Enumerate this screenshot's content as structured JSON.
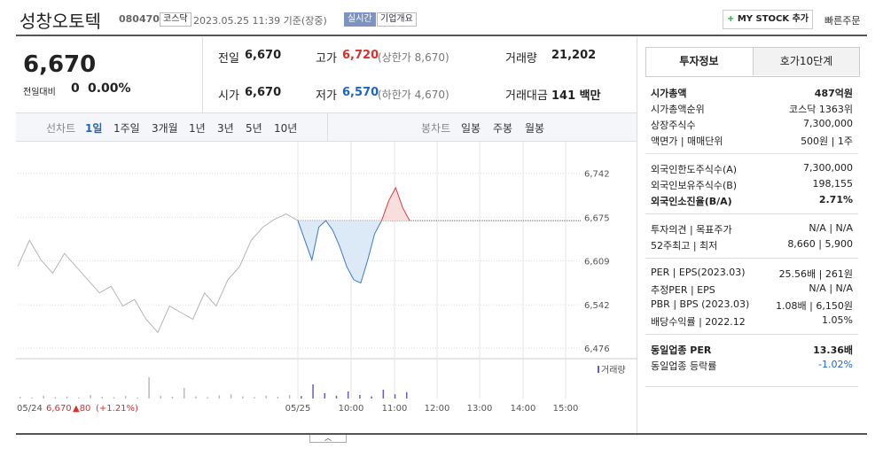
{
  "header": {
    "name": "성창오토텍",
    "code": "080470",
    "market": "코스닥",
    "datetime": "2023.05.25 11:39 기준(장중)",
    "live": "실시간",
    "overview": "기업개요",
    "mystock": "MY STOCK 추가",
    "quick": "빠른주문"
  },
  "quote": {
    "price": "6,670",
    "change_label": "전일대비",
    "change": "0",
    "change_rate": "0.00%",
    "stats": [
      [
        {
          "label": "전일",
          "value": "6,670"
        },
        {
          "label": "고가",
          "value": "6,720",
          "note": "(상한가 8,670)"
        },
        {
          "label": "거래량",
          "value": "21,202"
        }
      ],
      [
        {
          "label": "시가",
          "value": "6,670"
        },
        {
          "label": "저가",
          "value": "6,570",
          "note": "(하한가 4,670)"
        },
        {
          "label": "거래대금",
          "value": "141 백만"
        }
      ]
    ]
  },
  "tabs": {
    "line": [
      "선차트",
      "1일",
      "1주일",
      "3개월",
      "1년",
      "3년",
      "5년",
      "10년"
    ],
    "candle": [
      "봉차트",
      "일봉",
      "주봉",
      "월봉"
    ]
  },
  "chart_data": {
    "type": "line",
    "ylim": [
      6460,
      6790
    ],
    "yticks": [
      {
        "value": 6742,
        "label": "6,742"
      },
      {
        "value": 6675,
        "label": "6,675"
      },
      {
        "value": 6609,
        "label": "6,609"
      },
      {
        "value": 6542,
        "label": "6,542"
      },
      {
        "value": 6476,
        "label": "6,476"
      }
    ],
    "xticks": [
      "05/24",
      "05/25",
      "10:00",
      "11:00",
      "12:00",
      "13:00",
      "14:00",
      "15:00"
    ],
    "reference": 6670,
    "series": [
      {
        "color": "#b5b5b5",
        "values": [
          6600,
          6640,
          6610,
          6590,
          6620,
          6600,
          6580,
          6560,
          6570,
          6540,
          6550,
          6520,
          6500,
          6540,
          6530,
          6520,
          6560,
          6540,
          6580,
          6600,
          6640,
          6660,
          6672,
          6680,
          6670
        ]
      },
      {
        "color": "#3b78d0",
        "values": [
          6670,
          6640,
          6610,
          6660,
          6670,
          6655,
          6630,
          6600,
          6580,
          6575,
          6610,
          6650,
          6670,
          6700,
          6720,
          6690,
          6670
        ]
      }
    ],
    "volume": {
      "label": "거래량",
      "ylim": [
        0,
        100
      ],
      "values": [
        5,
        3,
        8,
        4,
        6,
        3,
        10,
        5,
        4,
        7,
        3,
        60,
        8,
        5,
        30,
        6,
        4,
        9,
        12,
        6,
        4,
        8,
        5,
        10,
        7,
        40,
        15,
        8,
        20,
        10,
        6,
        25,
        12,
        18
      ]
    },
    "footer": {
      "date": "05/24",
      "price": "6,670",
      "change": "▲80",
      "rate": "(+1.21%)"
    }
  },
  "info": {
    "tabs": [
      "투자정보",
      "호가10단계"
    ],
    "groups": [
      [
        {
          "label": "시가총액",
          "value": "487억원",
          "bold": true
        },
        {
          "label": "시가총액순위",
          "value": "코스닥 1363위"
        },
        {
          "label": "상장주식수",
          "value": "7,300,000"
        },
        {
          "label": "액면가 | 매매단위",
          "value": "500원 | 1주"
        }
      ],
      [
        {
          "label": "외국인한도주식수(A)",
          "value": "7,300,000"
        },
        {
          "label": "외국인보유주식수(B)",
          "value": "198,155"
        },
        {
          "label": "외국인소진율(B/A)",
          "value": "2.71%",
          "bold": true
        }
      ],
      [
        {
          "label": "투자의견 | 목표주가",
          "value": "N/A | N/A"
        },
        {
          "label": "52주최고 | 최저",
          "value": "8,660 | 5,900"
        }
      ],
      [
        {
          "label": "PER | EPS(2023.03)",
          "value": "25.56배 | 261원"
        },
        {
          "label": "추정PER | EPS",
          "value": "N/A | N/A"
        },
        {
          "label": "PBR | BPS (2023.03)",
          "value": "1.08배 | 6,150원"
        },
        {
          "label": "배당수익률 | 2022.12",
          "value": "1.05%"
        }
      ],
      [
        {
          "label": "동일업종 PER",
          "value": "13.36배",
          "bold": true
        },
        {
          "label": "동일업종 등락률",
          "value": "-1.02%",
          "blue": true
        }
      ]
    ]
  }
}
